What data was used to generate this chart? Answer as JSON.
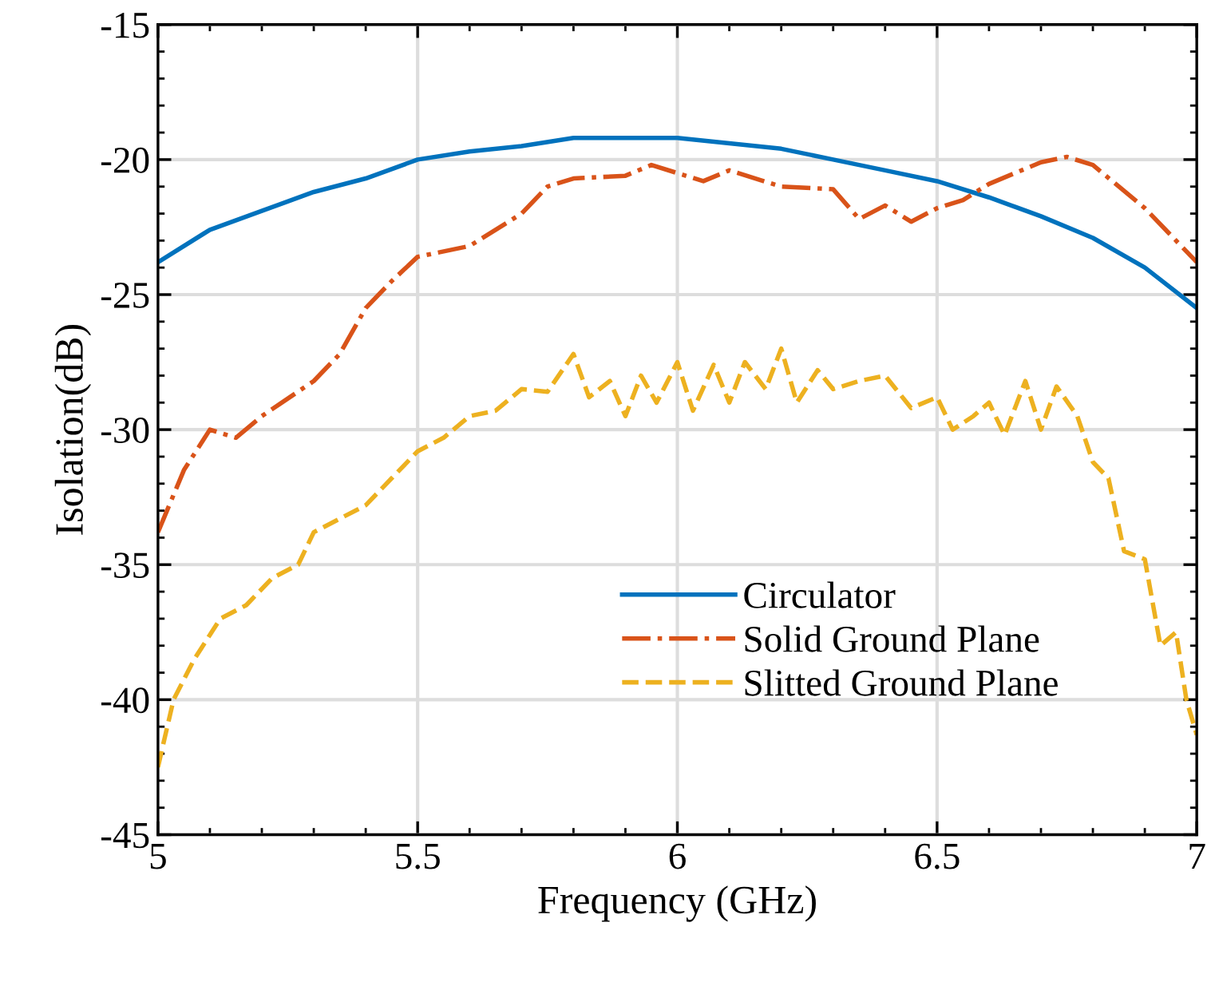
{
  "chart_data": {
    "type": "line",
    "xlabel": "Frequency (GHz)",
    "ylabel": "Isolation(dB)",
    "xlim": [
      5,
      7
    ],
    "ylim": [
      -45,
      -15
    ],
    "xticks": [
      5,
      5.5,
      6,
      6.5,
      7
    ],
    "yticks": [
      -45,
      -40,
      -35,
      -30,
      -25,
      -20,
      -15
    ],
    "grid": true,
    "legend": "bottom right",
    "marker": "none",
    "series": [
      {
        "name": "Circulator",
        "color": "#0072bd",
        "line_style": "solid",
        "x": [
          5.0,
          5.1,
          5.2,
          5.3,
          5.4,
          5.5,
          5.6,
          5.7,
          5.8,
          5.9,
          6.0,
          6.1,
          6.2,
          6.3,
          6.4,
          6.5,
          6.6,
          6.7,
          6.8,
          6.9,
          7.0
        ],
        "values": [
          -23.8,
          -22.6,
          -21.9,
          -21.2,
          -20.7,
          -20.0,
          -19.7,
          -19.5,
          -19.2,
          -19.2,
          -19.2,
          -19.4,
          -19.6,
          -20.0,
          -20.4,
          -20.8,
          -21.4,
          -22.1,
          -22.9,
          -24.0,
          -25.5
        ]
      },
      {
        "name": "Solid Ground Plane",
        "color": "#d95319",
        "line_style": "dashdot",
        "x": [
          5.0,
          5.05,
          5.1,
          5.15,
          5.2,
          5.3,
          5.35,
          5.4,
          5.45,
          5.5,
          5.6,
          5.7,
          5.75,
          5.8,
          5.9,
          5.95,
          6.0,
          6.05,
          6.1,
          6.2,
          6.3,
          6.35,
          6.4,
          6.45,
          6.5,
          6.55,
          6.6,
          6.7,
          6.75,
          6.8,
          6.85,
          6.9,
          6.95,
          7.0
        ],
        "values": [
          -33.8,
          -31.5,
          -30.0,
          -30.3,
          -29.5,
          -28.2,
          -27.2,
          -25.5,
          -24.5,
          -23.6,
          -23.2,
          -22.0,
          -21.0,
          -20.7,
          -20.6,
          -20.2,
          -20.5,
          -20.8,
          -20.4,
          -21.0,
          -21.1,
          -22.2,
          -21.7,
          -22.3,
          -21.8,
          -21.5,
          -20.9,
          -20.1,
          -19.9,
          -20.2,
          -21.0,
          -21.8,
          -22.8,
          -23.8
        ]
      },
      {
        "name": "Slitted Ground Plane",
        "color": "#edb120",
        "line_style": "dashed",
        "x": [
          5.0,
          5.03,
          5.07,
          5.12,
          5.17,
          5.22,
          5.27,
          5.3,
          5.35,
          5.4,
          5.45,
          5.5,
          5.55,
          5.6,
          5.65,
          5.7,
          5.75,
          5.8,
          5.83,
          5.87,
          5.9,
          5.93,
          5.96,
          6.0,
          6.03,
          6.07,
          6.1,
          6.13,
          6.17,
          6.2,
          6.23,
          6.27,
          6.3,
          6.35,
          6.4,
          6.45,
          6.5,
          6.53,
          6.57,
          6.6,
          6.63,
          6.67,
          6.7,
          6.73,
          6.77,
          6.8,
          6.83,
          6.86,
          6.9,
          6.93,
          6.96,
          6.98,
          7.0
        ],
        "values": [
          -42.5,
          -40.0,
          -38.5,
          -37.0,
          -36.5,
          -35.5,
          -35.0,
          -33.8,
          -33.3,
          -32.8,
          -31.8,
          -30.8,
          -30.3,
          -29.5,
          -29.3,
          -28.5,
          -28.6,
          -27.2,
          -28.8,
          -28.2,
          -29.5,
          -28.0,
          -29.0,
          -27.5,
          -29.3,
          -27.6,
          -29.0,
          -27.5,
          -28.5,
          -27.0,
          -29.0,
          -27.8,
          -28.5,
          -28.2,
          -28.0,
          -29.2,
          -28.8,
          -30.0,
          -29.5,
          -29.0,
          -30.2,
          -28.2,
          -30.0,
          -28.4,
          -29.5,
          -31.2,
          -31.8,
          -34.5,
          -34.8,
          -38.0,
          -37.5,
          -40.0,
          -41.3
        ]
      }
    ]
  }
}
